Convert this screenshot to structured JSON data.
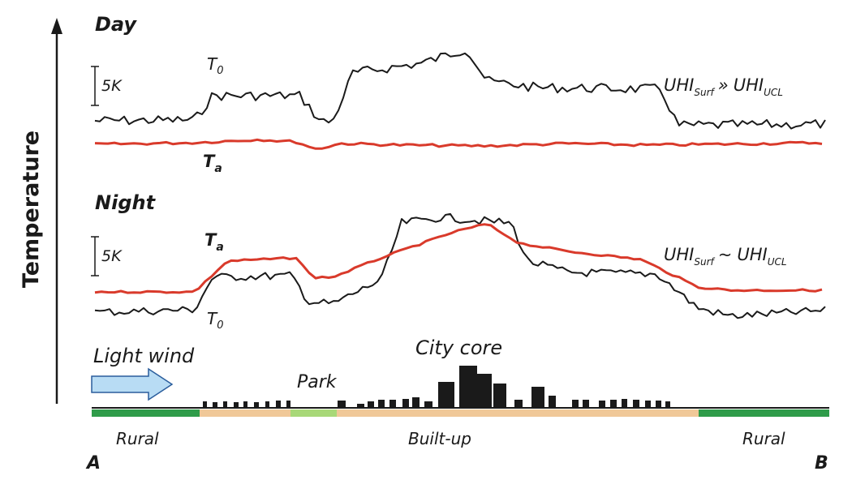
{
  "axis": {
    "label": "Temperature"
  },
  "day": {
    "title": "Day",
    "scale_label": "5K",
    "surface_label": {
      "main": "T",
      "sub": "0"
    },
    "air_label": {
      "main": "T",
      "sub": "a"
    },
    "relation": {
      "a": "UHI",
      "a_sub": "Surf",
      "op": "»",
      "b": "UHI",
      "b_sub": "UCL"
    }
  },
  "night": {
    "title": "Night",
    "scale_label": "5K",
    "air_label": {
      "main": "T",
      "sub": "a"
    },
    "surface_label": {
      "main": "T",
      "sub": "0"
    },
    "relation": {
      "a": "UHI",
      "a_sub": "Surf",
      "op": "~",
      "b": "UHI",
      "b_sub": "UCL"
    }
  },
  "transect": {
    "wind_label": "Light wind",
    "park_label": "Park",
    "city_core_label": "City core",
    "zone_left": "Rural",
    "zone_mid": "Built-up",
    "zone_right": "Rural",
    "end_a": "A",
    "end_b": "B"
  },
  "colors": {
    "air_line": "#d93a2b",
    "surface_line": "#1a1a1a",
    "rural": "#2f9c4a",
    "builtup": "#f0c898",
    "park": "#a8d878",
    "wind_arrow": "#b8dcf4",
    "buildings": "#1a1a1a"
  }
}
